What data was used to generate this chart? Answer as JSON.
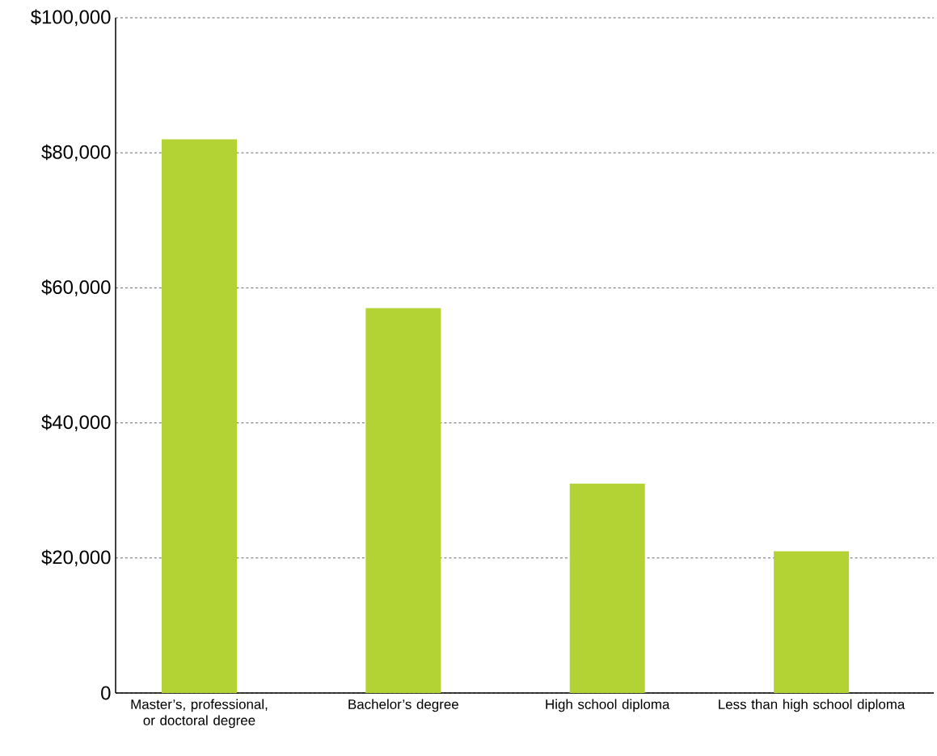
{
  "chart_data": {
    "type": "bar",
    "categories": [
      "Master’s, professional, or doctoral degree",
      "Bachelor’s degree",
      "High school diploma",
      "Less than high school diploma"
    ],
    "values": [
      82000,
      57000,
      31000,
      21000
    ],
    "color": "#b3d334",
    "ylim": [
      0,
      100000
    ],
    "yticks": [
      0,
      {
        "value": 20000,
        "label": "$20,000"
      },
      {
        "value": 40000,
        "label": "$40,000"
      },
      {
        "value": 60000,
        "label": "$60,000"
      },
      {
        "value": 80000,
        "label": "$80,000"
      },
      {
        "value": 100000,
        "label": "$100,000"
      }
    ],
    "grid": "y"
  }
}
